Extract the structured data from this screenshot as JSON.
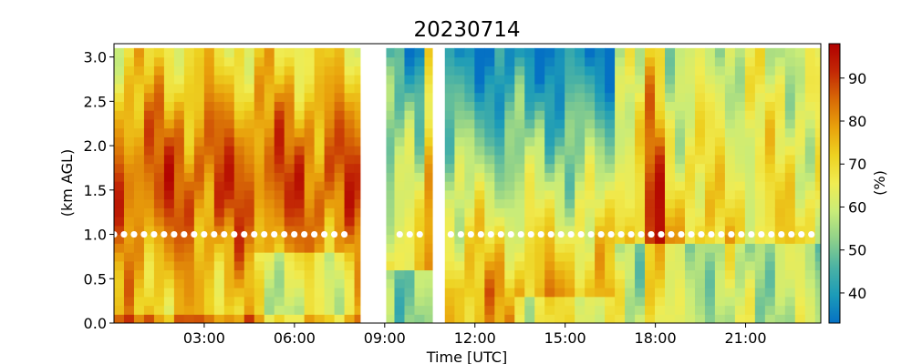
{
  "chart_data": {
    "type": "heatmap",
    "title": "20230714",
    "xlabel": "Time [UTC]",
    "ylabel": "(km AGL)",
    "colorbar_label": "(%)",
    "xlim_hours": [
      0,
      23.5
    ],
    "ylim_km": [
      0,
      3.15
    ],
    "x_ticks": [
      {
        "hour": 3,
        "label": "03:00"
      },
      {
        "hour": 6,
        "label": "06:00"
      },
      {
        "hour": 9,
        "label": "09:00"
      },
      {
        "hour": 12,
        "label": "12:00"
      },
      {
        "hour": 15,
        "label": "15:00"
      },
      {
        "hour": 18,
        "label": "18:00"
      },
      {
        "hour": 21,
        "label": "21:00"
      }
    ],
    "y_ticks": [
      {
        "value": 0.0,
        "label": "0.0"
      },
      {
        "value": 0.5,
        "label": "0.5"
      },
      {
        "value": 1.0,
        "label": "1.0"
      },
      {
        "value": 1.5,
        "label": "1.5"
      },
      {
        "value": 2.0,
        "label": "2.0"
      },
      {
        "value": 2.5,
        "label": "2.5"
      },
      {
        "value": 3.0,
        "label": "3.0"
      }
    ],
    "colorbar": {
      "range": [
        33,
        98
      ],
      "ticks": [
        {
          "value": 40,
          "label": "40"
        },
        {
          "value": 50,
          "label": "50"
        },
        {
          "value": 60,
          "label": "60"
        },
        {
          "value": 70,
          "label": "70"
        },
        {
          "value": 80,
          "label": "80"
        },
        {
          "value": 90,
          "label": "90"
        }
      ],
      "colors": [
        "#0571c4",
        "#1c9bb8",
        "#4bb2a4",
        "#8fd18a",
        "#c9ec78",
        "#f0ec52",
        "#eed221",
        "#e9a20c",
        "#d86a06",
        "#c32805",
        "#b00000"
      ]
    },
    "time_step_hours": 0.333,
    "height_levels_km": [
      0.05,
      0.15,
      0.25,
      0.35,
      0.45,
      0.55,
      0.65,
      0.75,
      0.85,
      0.95,
      1.05,
      1.15,
      1.25,
      1.35,
      1.45,
      1.55,
      1.65,
      1.75,
      1.85,
      1.95,
      2.05,
      2.15,
      2.25,
      2.35,
      2.45,
      2.55,
      2.65,
      2.75,
      2.85,
      2.95,
      3.05
    ],
    "data_gaps_hours": [
      [
        8.2,
        9.05
      ],
      [
        10.6,
        11.0
      ]
    ],
    "marker_height_km": 1.0,
    "marker_segments_hours": [
      [
        0.0,
        7.8
      ],
      [
        9.5,
        10.3
      ],
      [
        11.2,
        23.4
      ]
    ],
    "marker_spacing_hours": 0.333
  }
}
